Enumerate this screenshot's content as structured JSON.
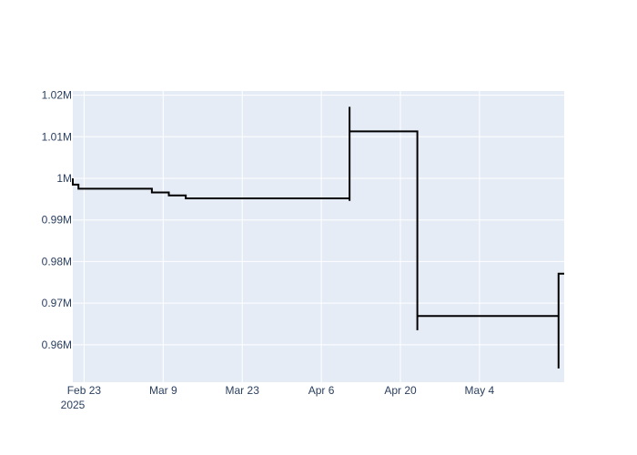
{
  "chart_data": {
    "type": "line",
    "line_shape": "step",
    "title": "",
    "xlabel": "",
    "ylabel": "",
    "x_axis_year_label": "2025",
    "xlim": [
      "2025-02-21",
      "2025-05-19"
    ],
    "ylim": [
      951000,
      1021000
    ],
    "x_ticks": [
      {
        "date": "2025-02-23",
        "label": "Feb 23"
      },
      {
        "date": "2025-03-09",
        "label": "Mar 9"
      },
      {
        "date": "2025-03-23",
        "label": "Mar 23"
      },
      {
        "date": "2025-04-06",
        "label": "Apr 6"
      },
      {
        "date": "2025-04-20",
        "label": "Apr 20"
      },
      {
        "date": "2025-05-04",
        "label": "May 4"
      }
    ],
    "y_ticks": [
      {
        "value": 960000,
        "label": "0.96M"
      },
      {
        "value": 970000,
        "label": "0.97M"
      },
      {
        "value": 980000,
        "label": "0.98M"
      },
      {
        "value": 990000,
        "label": "0.99M"
      },
      {
        "value": 1000000,
        "label": "1M"
      },
      {
        "value": 1010000,
        "label": "1.01M"
      },
      {
        "value": 1020000,
        "label": "1.02M"
      }
    ],
    "grid": true,
    "legend": "none",
    "colors": {
      "plot_background": "#e5ecf6",
      "grid": "#ffffff",
      "line": "#000000",
      "tick_text": "#2a3f5f"
    },
    "series": [
      {
        "points": [
          [
            "2025-02-21",
            1000000
          ],
          [
            "2025-02-21",
            998500
          ],
          [
            "2025-02-22",
            998500
          ],
          [
            "2025-02-22",
            997500
          ],
          [
            "2025-03-07",
            997500
          ],
          [
            "2025-03-07",
            996600
          ],
          [
            "2025-03-10",
            996600
          ],
          [
            "2025-03-10",
            995900
          ],
          [
            "2025-03-13",
            995900
          ],
          [
            "2025-03-13",
            995200
          ],
          [
            "2025-04-11",
            995200
          ],
          [
            "2025-04-11",
            994600
          ],
          [
            "2025-04-11",
            1017200
          ],
          [
            "2025-04-11",
            1011300
          ],
          [
            "2025-04-23",
            1011300
          ],
          [
            "2025-04-23",
            985000
          ],
          [
            "2025-04-23",
            963500
          ],
          [
            "2025-04-23",
            966900
          ],
          [
            "2025-05-18",
            966900
          ],
          [
            "2025-05-18",
            954300
          ],
          [
            "2025-05-18",
            977100
          ],
          [
            "2025-05-19",
            977100
          ]
        ]
      }
    ]
  }
}
